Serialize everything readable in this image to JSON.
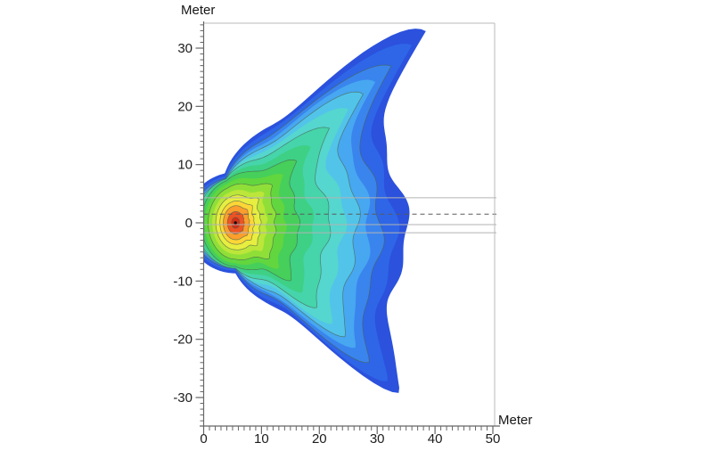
{
  "figure": {
    "background": "#ffffff",
    "y_axis_title": "Meter",
    "x_axis_title": "Meter"
  },
  "chart_data": {
    "type": "contour",
    "title": "",
    "xlabel": "Meter",
    "ylabel": "Meter",
    "x_ticks": [
      0,
      10,
      20,
      30,
      40,
      50
    ],
    "y_ticks": [
      -30,
      -20,
      -10,
      0,
      10,
      20,
      30
    ],
    "x_minor_step_m": 1,
    "y_minor_step_m": 1,
    "x_range_m": [
      0,
      50.3
    ],
    "y_range_m": [
      -34.9,
      34.3
    ],
    "grid": false,
    "legend": "none",
    "hotspot": {
      "x_m": 5.5,
      "y_m": 0.0,
      "marker": "black-dot"
    },
    "peak_extents_m": {
      "top_wing_tip": [
        38.3,
        33.0
      ],
      "bottom_wing_tip": [
        33.6,
        -28.8
      ],
      "right_extent_at_center": 34.5,
      "left_extent": 0.0
    },
    "levels": [
      {
        "d": 28.9,
        "color": "#2b51dd",
        "line": false
      },
      {
        "d": 27.1,
        "color": "#2e66e7",
        "line": false
      },
      {
        "d": 24.8,
        "color": "#3a84ee",
        "line": true
      },
      {
        "d": 22.9,
        "color": "#47a7f0",
        "line": false
      },
      {
        "d": 20.9,
        "color": "#52c4e9",
        "line": true
      },
      {
        "d": 18.6,
        "color": "#55d6cf",
        "line": false
      },
      {
        "d": 16.0,
        "color": "#46d4ab",
        "line": true
      },
      {
        "d": 13.2,
        "color": "#3ed084",
        "line": false
      },
      {
        "d": 10.8,
        "color": "#46cf5a",
        "line": true
      },
      {
        "d": 8.6,
        "color": "#62d63e",
        "line": false
      },
      {
        "d": 6.9,
        "color": "#8fdf38",
        "line": true
      },
      {
        "d": 5.4,
        "color": "#bce63a",
        "line": false
      },
      {
        "d": 4.3,
        "color": "#e8ee40",
        "line": true
      },
      {
        "d": 3.2,
        "color": "#fdd637",
        "line": true
      },
      {
        "d": 2.4,
        "color": "#fb9e2e",
        "line": true
      },
      {
        "d": 1.5,
        "color": "#ef5222",
        "line": true
      },
      {
        "d": 0.7,
        "color": "#d92d16",
        "line": true
      }
    ],
    "contour_line_color": "#49634f",
    "reference_lines": [
      {
        "y_m": 4.3,
        "style": "solid"
      },
      {
        "y_m": 1.5,
        "style": "dashed"
      },
      {
        "y_m": -0.3,
        "style": "solid"
      },
      {
        "y_m": -1.7,
        "style": "solid"
      }
    ],
    "model": {
      "center_x_m": 5.5,
      "center_y_m": 0.0,
      "d_ref": 28.9,
      "base": {
        "a": 0.355,
        "b": 0.534,
        "s": 0.055,
        "c": 0.111,
        "floor": 0.3
      },
      "ellipse_vstretch": 1.4,
      "ellipse_blend_exp": 2.2,
      "wing_top": {
        "amp": 22.6,
        "angle_deg": 45.0,
        "trail_len_deg": 6.7,
        "lead_sigma_deg": 12
      },
      "wing_bottom": {
        "amp": 19.0,
        "angle_deg": -45.7,
        "trail_len_deg": 13.0,
        "lead_sigma_deg": 8
      },
      "wing_amp_exp": 1.6,
      "ripple": {
        "amp": 1.0,
        "amp_exp": 0.9,
        "window_deg": 60,
        "period1_deg": 23,
        "period2_deg": 41
      }
    },
    "style_colors": {
      "axis": "#666666",
      "frame": "#b9b9b9",
      "ref_solid": "#b3b3b3",
      "ref_dashed": "#5a5a5a",
      "marker": "#101010"
    }
  }
}
